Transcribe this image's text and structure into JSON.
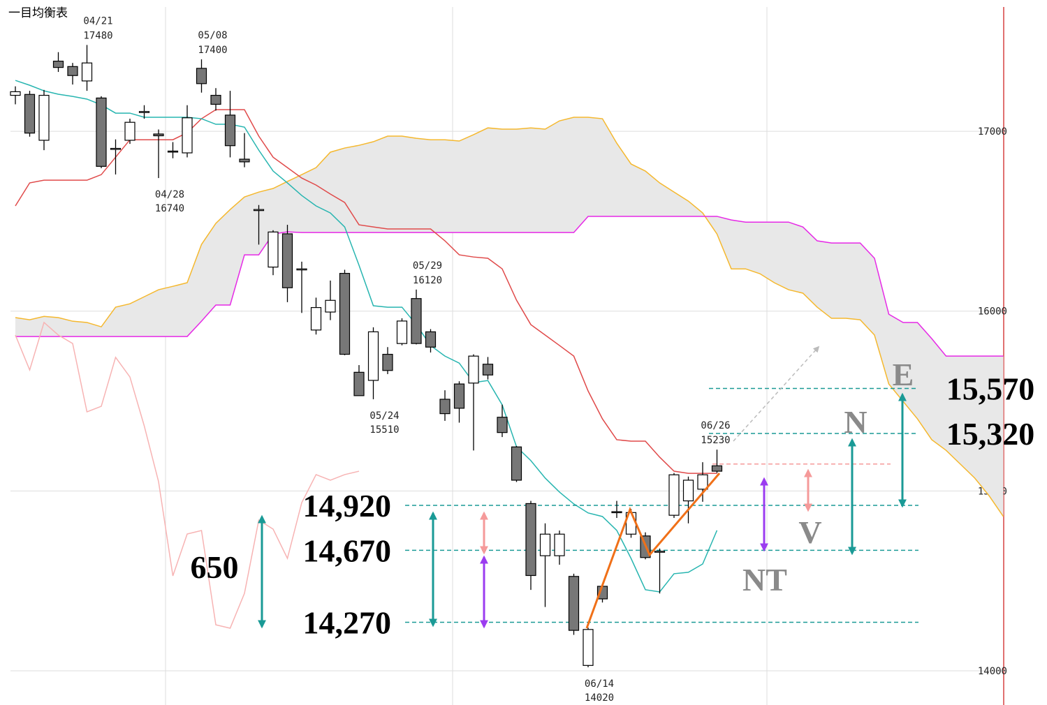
{
  "chart_data": {
    "type": "candlestick",
    "title": "一目均衡表",
    "open": [
      17200,
      17205,
      16950,
      17390,
      17360,
      17280,
      17185,
      16900,
      16950,
      17110,
      16985,
      16890,
      16880,
      17350,
      17200,
      17090,
      16845,
      16565,
      16245,
      16430,
      16235,
      15895,
      15995,
      16210,
      15660,
      15615,
      15760,
      15820,
      16070,
      15885,
      15510,
      15595,
      15600,
      15705,
      15410,
      15245,
      14930,
      14640,
      14640,
      14525,
      14030,
      14470,
      14885,
      14760,
      14750,
      14665,
      14865,
      14945,
      15010,
      15140
    ],
    "high": [
      17250,
      17225,
      17230,
      17440,
      17380,
      17480,
      17195,
      16955,
      17070,
      17145,
      17010,
      16940,
      17145,
      17400,
      17240,
      17225,
      16990,
      16590,
      16450,
      16480,
      16275,
      16075,
      16170,
      16230,
      15700,
      15910,
      15800,
      15960,
      16120,
      15900,
      15560,
      15610,
      15760,
      15745,
      15480,
      15250,
      14945,
      14820,
      14780,
      14540,
      14240,
      14480,
      14945,
      14900,
      14770,
      14680,
      15100,
      15080,
      15160,
      15230
    ],
    "low": [
      17150,
      16970,
      16895,
      17330,
      17260,
      17225,
      16795,
      16760,
      16930,
      17070,
      16740,
      16850,
      16855,
      17215,
      17115,
      16855,
      16800,
      16370,
      16200,
      16050,
      15990,
      15870,
      15950,
      15755,
      15530,
      15510,
      15650,
      15810,
      15815,
      15770,
      15390,
      15380,
      15225,
      15620,
      15300,
      15050,
      14450,
      14355,
      14590,
      14200,
      14020,
      14380,
      14850,
      14740,
      14620,
      14430,
      14850,
      14820,
      14940,
      15100
    ],
    "close": [
      17220,
      16990,
      17200,
      17355,
      17310,
      17380,
      16805,
      16905,
      17050,
      17110,
      16975,
      16885,
      17075,
      17265,
      17150,
      16920,
      16830,
      16565,
      16440,
      16130,
      16235,
      16020,
      16060,
      15760,
      15530,
      15885,
      15670,
      15945,
      15820,
      15800,
      15430,
      15460,
      15750,
      15645,
      15325,
      15060,
      14530,
      14760,
      14760,
      14225,
      14230,
      14400,
      14880,
      14880,
      14630,
      14665,
      15090,
      15060,
      15090,
      15110
    ],
    "up_color": "#ffffff",
    "down_color": "#777777",
    "tenkan": {
      "color": "#27b5b0",
      "values": [
        17283,
        17256,
        17225,
        17206,
        17194,
        17179,
        17147,
        17101,
        17101,
        17078,
        17078,
        17078,
        17078,
        17070,
        17039,
        17039,
        17023,
        16895,
        16779,
        16713,
        16643,
        16585,
        16546,
        16468,
        16255,
        16030,
        16022,
        16022,
        15925,
        15809,
        15750,
        15711,
        15603,
        15614,
        15479,
        15246,
        15169,
        15072,
        14994,
        14928,
        14878,
        14858,
        14781,
        14625,
        14451,
        14439,
        14540,
        14548,
        14594,
        14781
      ]
    },
    "kijun": {
      "color": "#e04a4a",
      "values": [
        16585,
        16713,
        16728,
        16728,
        16728,
        16728,
        16759,
        16856,
        16953,
        16953,
        16953,
        16953,
        16992,
        17070,
        17120,
        17120,
        17120,
        16973,
        16856,
        16798,
        16740,
        16701,
        16651,
        16604,
        16480,
        16468,
        16457,
        16457,
        16457,
        16457,
        16391,
        16313,
        16301,
        16294,
        16235,
        16061,
        15925,
        15867,
        15809,
        15750,
        15556,
        15401,
        15285,
        15277,
        15277,
        15188,
        15110,
        15098,
        15098,
        15098
      ]
    },
    "senkou_a": {
      "color": "#f5b82e",
      "values": [
        15964,
        15952,
        15971,
        15964,
        15944,
        15937,
        15913,
        16022,
        16041,
        16080,
        16119,
        16138,
        16158,
        16371,
        16488,
        16565,
        16635,
        16662,
        16682,
        16721,
        16759,
        16798,
        16884,
        16907,
        16922,
        16942,
        16973,
        16973,
        16961,
        16953,
        16953,
        16946,
        16981,
        17019,
        17012,
        17012,
        17019,
        17012,
        17058,
        17078,
        17078,
        17070,
        16934,
        16818,
        16779,
        16713,
        16662,
        16612,
        16546,
        16429,
        16235,
        16235,
        16208,
        16158,
        16119,
        16100,
        16022,
        15960,
        15960,
        15952,
        15867,
        15595,
        15498,
        15401,
        15285,
        15226,
        15149,
        15072,
        14974,
        14858
      ]
    },
    "senkou_b": {
      "color": "#e629e6",
      "values": [
        15859,
        15859,
        15859,
        15859,
        15859,
        15859,
        15859,
        15859,
        15859,
        15859,
        15859,
        15859,
        15859,
        15944,
        16034,
        16034,
        16313,
        16313,
        16429,
        16441,
        16437,
        16437,
        16437,
        16437,
        16437,
        16437,
        16437,
        16437,
        16437,
        16437,
        16437,
        16437,
        16437,
        16437,
        16437,
        16437,
        16437,
        16437,
        16437,
        16437,
        16527,
        16527,
        16527,
        16527,
        16527,
        16527,
        16527,
        16527,
        16527,
        16527,
        16507,
        16495,
        16495,
        16495,
        16495,
        16468,
        16391,
        16379,
        16379,
        16379,
        16294,
        15983,
        15937,
        15937,
        15847,
        15750,
        15750,
        15750,
        15750,
        15750
      ]
    },
    "chikou": {
      "color": "#f7b3b3",
      "values": [
        15867,
        15673,
        15937,
        15867,
        15820,
        15440,
        15471,
        15743,
        15634,
        15362,
        15052,
        14528,
        14761,
        14780,
        14256,
        14237,
        14431,
        14838,
        14788,
        14625,
        14935,
        15091,
        15060,
        15091,
        15110
      ]
    },
    "cloud_color": "#e8e8e8",
    "annotations": [
      {
        "date": "04/21",
        "value": 17480
      },
      {
        "date": "04/28",
        "value": 16740
      },
      {
        "date": "05/08",
        "value": 17400
      },
      {
        "date": "05/24",
        "value": 15510
      },
      {
        "date": "05/29",
        "value": 16120
      },
      {
        "date": "06/14",
        "value": 14020
      },
      {
        "date": "06/26",
        "value": 15230
      }
    ],
    "levels": [
      {
        "value": 15570,
        "label": "15,570"
      },
      {
        "value": 15320,
        "label": "15,320"
      },
      {
        "value": 14920,
        "label": "14,920"
      },
      {
        "value": 14670,
        "label": "14,670"
      },
      {
        "value": 14270,
        "label": "14,270"
      }
    ],
    "level_color": "#1a9a96",
    "reference_line": {
      "value": 15150,
      "color": "#f59a9a"
    },
    "range_label": "650",
    "wave_labels": [
      "E",
      "N",
      "V",
      "NT"
    ],
    "ylim": [
      13810,
      17730
    ],
    "yticks": [
      14000,
      15000,
      16000,
      17000
    ],
    "grid": true
  }
}
